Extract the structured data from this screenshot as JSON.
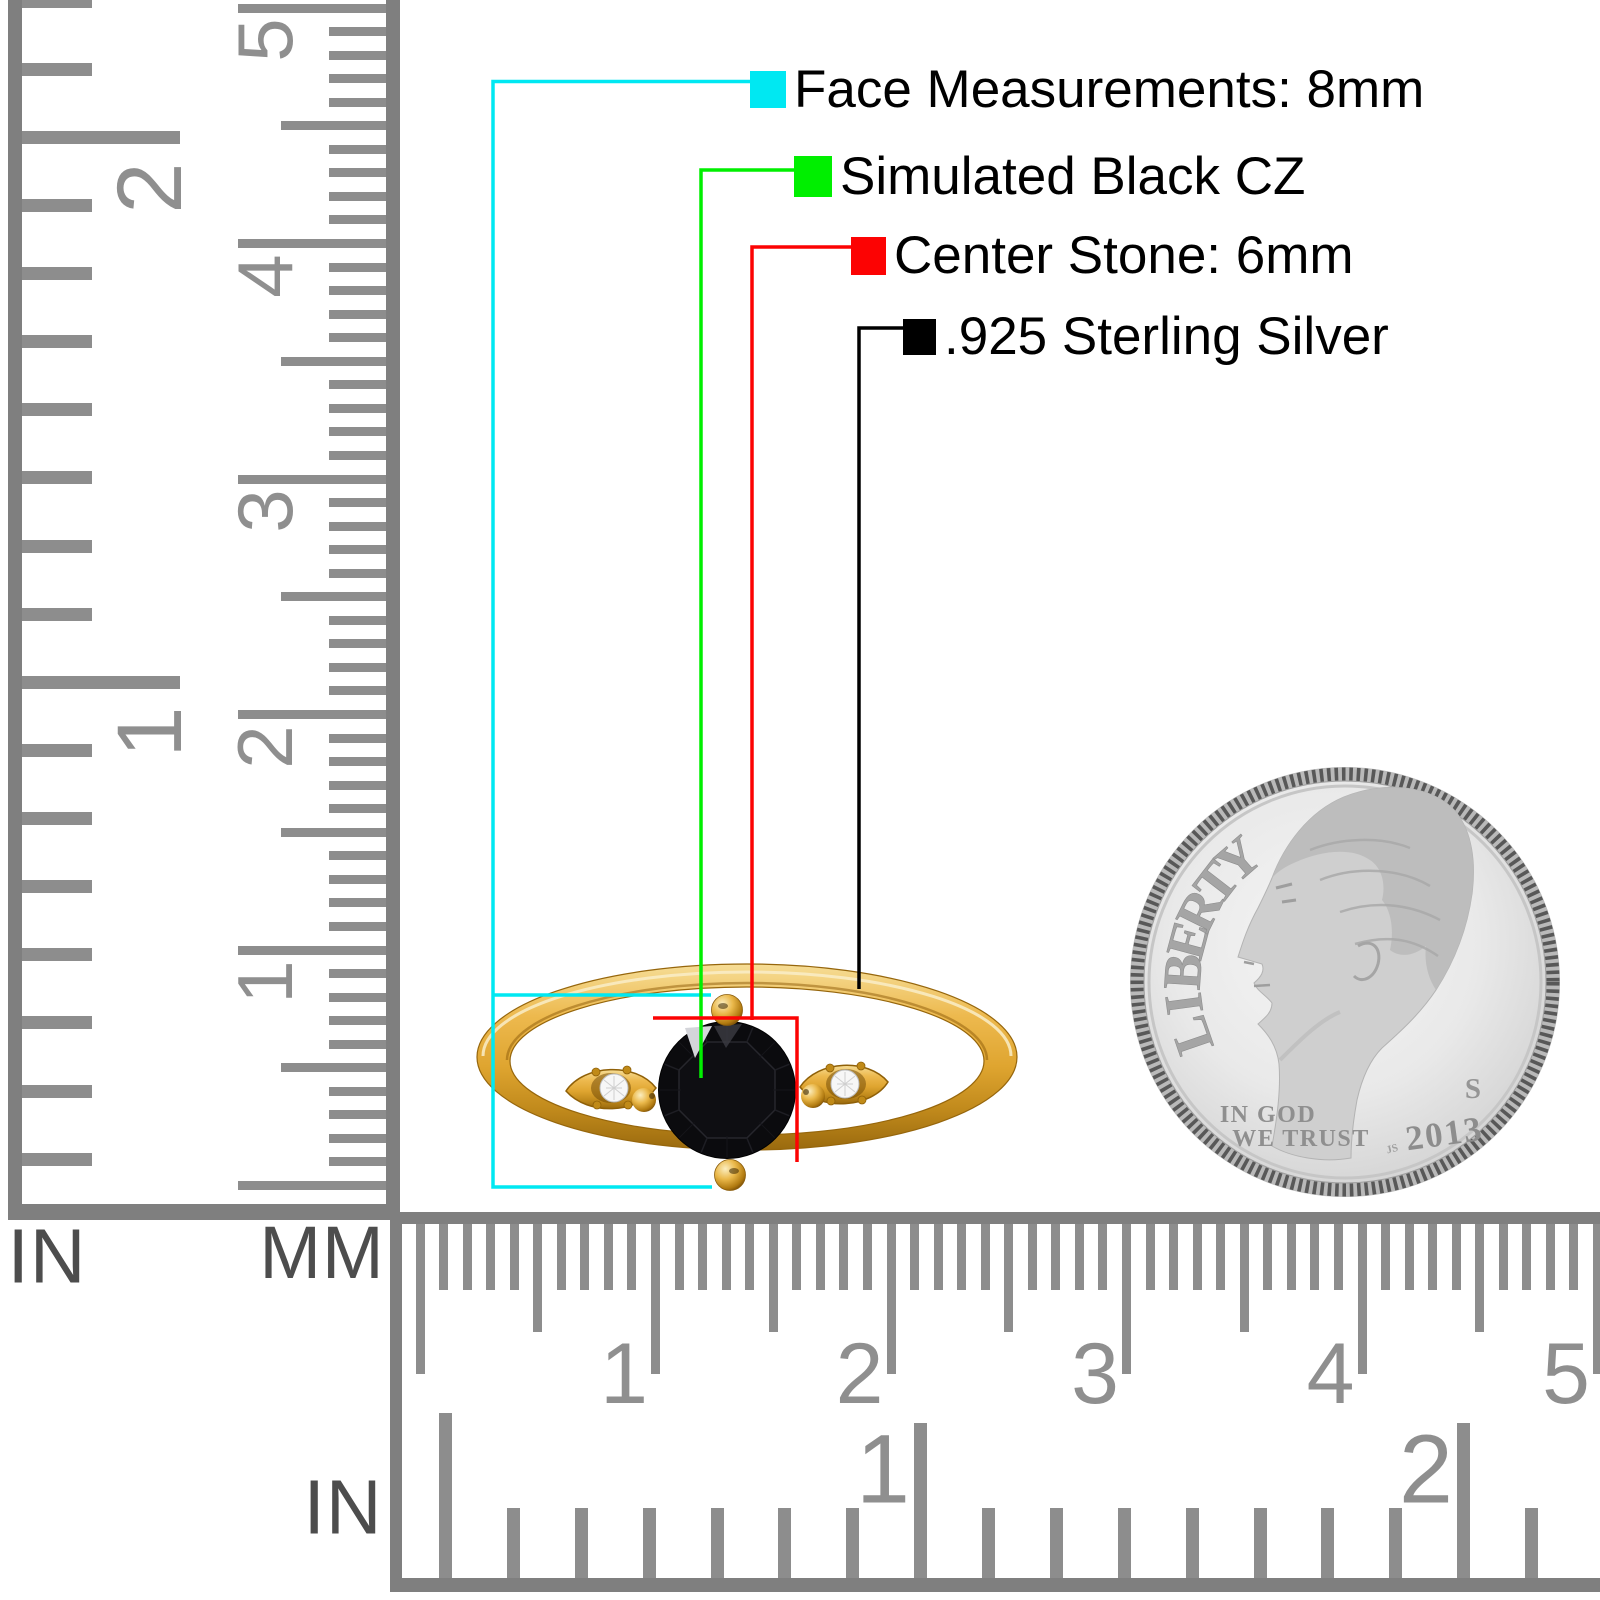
{
  "image_type": "jewelry-product-photo",
  "legend": {
    "items": [
      {
        "color": "#00e8f2",
        "label": "Face Measurements: 8mm"
      },
      {
        "color": "#00ef00",
        "label": "Simulated Black CZ"
      },
      {
        "color": "#fc0303",
        "label": "Center Stone: 6mm"
      },
      {
        "color": "#000000",
        "label": ".925 Sterling Silver"
      }
    ]
  },
  "rulers": {
    "left_inch": {
      "unit_label": "IN",
      "numbers": [
        "2",
        "1"
      ]
    },
    "left_mm": {
      "unit_label": "MM",
      "numbers": [
        "5",
        "4",
        "3",
        "2",
        "1"
      ]
    },
    "bottom_mm": {
      "numbers": [
        "1",
        "2",
        "3",
        "4",
        "5"
      ]
    },
    "bottom_inch": {
      "unit_label": "IN",
      "numbers": [
        "1",
        "2"
      ]
    }
  },
  "coin": {
    "name": "US dime",
    "legend_text": "LIBERTY",
    "motto_line1": "IN GOD",
    "motto_line2": "WE TRUST",
    "mint_mark": "S",
    "year": "2013",
    "designer_initials": "JS"
  },
  "ring": {
    "band_color": "#e2a93c",
    "stone_color": "#0b0b0e",
    "accent_stone_color": "#f8f8f8"
  }
}
